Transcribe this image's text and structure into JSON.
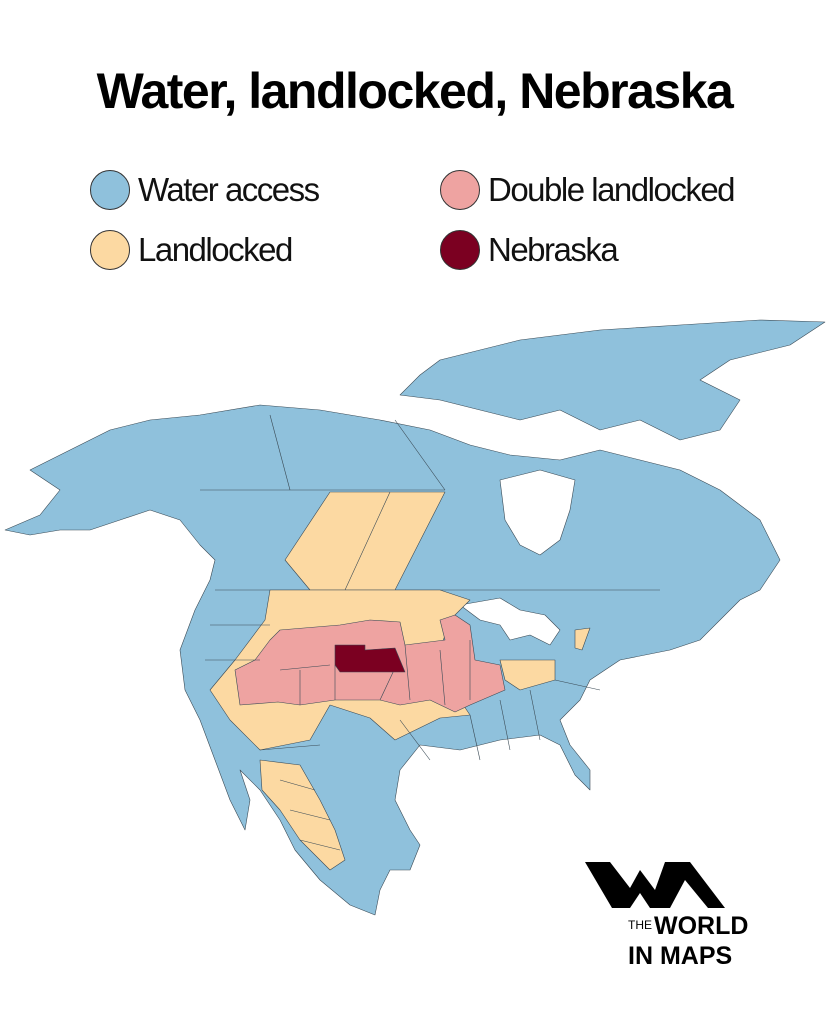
{
  "title": "Water, landlocked, Nebraska",
  "legend": [
    {
      "label": "Water access",
      "color": "#8fc1dc"
    },
    {
      "label": "Double landlocked",
      "color": "#eea3a1"
    },
    {
      "label": "Landlocked",
      "color": "#fcd9a2"
    },
    {
      "label": "Nebraska",
      "color": "#7b0021"
    }
  ],
  "logo": {
    "line1_small": "THE",
    "line1_big": "WORLD",
    "line2": "IN MAPS"
  }
}
